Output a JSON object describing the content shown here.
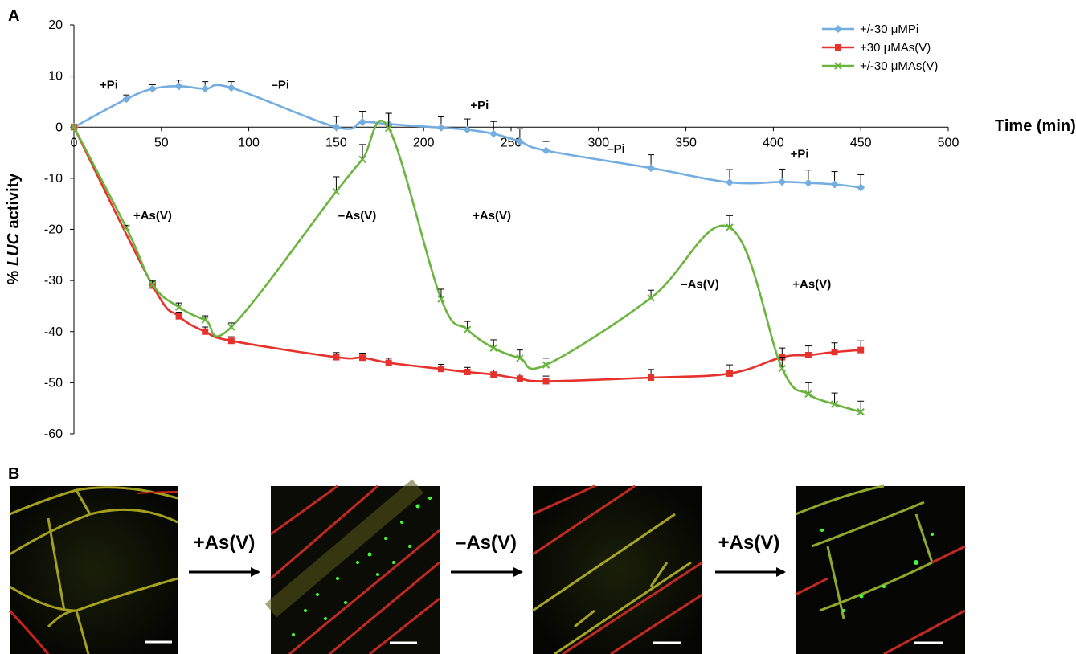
{
  "panels": {
    "a_label": "A",
    "b_label": "B"
  },
  "chart_data": {
    "type": "line",
    "title": "",
    "xlabel": "Time (min)",
    "ylabel": "% LUC activity",
    "ylabel_prefix": "% ",
    "ylabel_italic": "LUC",
    "ylabel_suffix": " activity",
    "xlim": [
      0,
      500
    ],
    "ylim": [
      -60,
      20
    ],
    "xticks": [
      "0",
      "50",
      "100",
      "150",
      "200",
      "250",
      "300",
      "350",
      "400",
      "450",
      "500"
    ],
    "yticks": [
      "20",
      "10",
      "0",
      "-10",
      "-20",
      "-30",
      "-40",
      "-50",
      "-60"
    ],
    "legend_position": "top-right",
    "series": [
      {
        "name": "+/-30 μMPi",
        "color": "#74aee0",
        "marker": "diamond",
        "points": [
          [
            0,
            0
          ],
          [
            30,
            5.5
          ],
          [
            45,
            7.5
          ],
          [
            60,
            8
          ],
          [
            75,
            7.5
          ],
          [
            90,
            7.7
          ],
          [
            150,
            0
          ],
          [
            165,
            1
          ],
          [
            180,
            0.6
          ],
          [
            210,
            -0.1
          ],
          [
            225,
            -0.5
          ],
          [
            240,
            -1.3
          ],
          [
            255,
            -2.8
          ],
          [
            270,
            -4.6
          ],
          [
            330,
            -8
          ],
          [
            375,
            -10.8
          ],
          [
            405,
            -10.7
          ],
          [
            420,
            -10.9
          ],
          [
            435,
            -11.2
          ],
          [
            450,
            -11.8
          ]
        ],
        "errors": [
          0,
          0.8,
          0.8,
          1.2,
          1.4,
          1.2,
          2.1,
          2.1,
          2.1,
          2.1,
          2.1,
          2.4,
          2.5,
          1.8,
          2.6,
          2.5,
          2.5,
          2.5,
          2.5,
          2.5
        ]
      },
      {
        "name": "+30 μMAs(V)",
        "color": "#e5322d",
        "marker": "square",
        "points": [
          [
            0,
            0
          ],
          [
            45,
            -31
          ],
          [
            60,
            -37
          ],
          [
            75,
            -40
          ],
          [
            90,
            -41.8
          ],
          [
            150,
            -45
          ],
          [
            165,
            -45.1
          ],
          [
            180,
            -46.1
          ],
          [
            210,
            -47.3
          ],
          [
            225,
            -47.9
          ],
          [
            240,
            -48.4
          ],
          [
            255,
            -49.2
          ],
          [
            270,
            -49.7
          ],
          [
            330,
            -49
          ],
          [
            375,
            -48.2
          ],
          [
            405,
            -45
          ],
          [
            420,
            -44.6
          ],
          [
            435,
            -44
          ],
          [
            450,
            -43.6
          ]
        ],
        "errors": [
          0,
          0.8,
          0.8,
          0.9,
          0.8,
          0.9,
          0.9,
          0.9,
          0.9,
          0.9,
          0.9,
          0.9,
          1,
          1.6,
          1.7,
          1.8,
          1.8,
          1.8,
          1.8
        ]
      },
      {
        "name": "+/-30 μMAs(V)",
        "color": "#6bb43f",
        "marker": "x",
        "points": [
          [
            0,
            0
          ],
          [
            30,
            -19.7
          ],
          [
            45,
            -30.8
          ],
          [
            60,
            -35.2
          ],
          [
            75,
            -37.7
          ],
          [
            90,
            -39.1
          ],
          [
            150,
            -12.6
          ],
          [
            165,
            -6.3
          ],
          [
            180,
            -0.2
          ],
          [
            210,
            -33.6
          ],
          [
            225,
            -39.6
          ],
          [
            240,
            -43.2
          ],
          [
            255,
            -45.2
          ],
          [
            270,
            -46.5
          ],
          [
            330,
            -33.4
          ],
          [
            375,
            -19.6
          ],
          [
            405,
            -47.2
          ],
          [
            420,
            -52.2
          ],
          [
            435,
            -54.2
          ],
          [
            450,
            -55.7
          ]
        ],
        "errors": [
          0,
          0.5,
          0.8,
          0.8,
          0.8,
          0.8,
          2.9,
          2.9,
          2.9,
          1.9,
          1.6,
          1.6,
          1.6,
          1.3,
          1.5,
          2.3,
          2.2,
          2.2,
          2.2,
          2.1
        ]
      }
    ],
    "annotations": [
      {
        "text": "+Pi",
        "x": 20,
        "y": 7.5
      },
      {
        "text": "–Pi",
        "x": 118,
        "y": 7.5
      },
      {
        "text": "+Pi",
        "x": 232,
        "y": 3.5
      },
      {
        "text": "–Pi",
        "x": 310,
        "y": -5
      },
      {
        "text": "+Pi",
        "x": 415,
        "y": -6
      },
      {
        "text": "+As(V)",
        "x": 45,
        "y": -18
      },
      {
        "text": "–As(V)",
        "x": 162,
        "y": -18
      },
      {
        "text": "+As(V)",
        "x": 239,
        "y": -18
      },
      {
        "text": "–As(V)",
        "x": 358,
        "y": -31.5
      },
      {
        "text": "+As(V)",
        "x": 422,
        "y": -31.5
      }
    ]
  },
  "panel_b": {
    "steps": [
      "+As(V)",
      "–As(V)",
      "+As(V)"
    ],
    "images": [
      "root cell micrograph 1",
      "root cell micrograph 2",
      "root cell micrograph 3",
      "root cell micrograph 4"
    ]
  }
}
